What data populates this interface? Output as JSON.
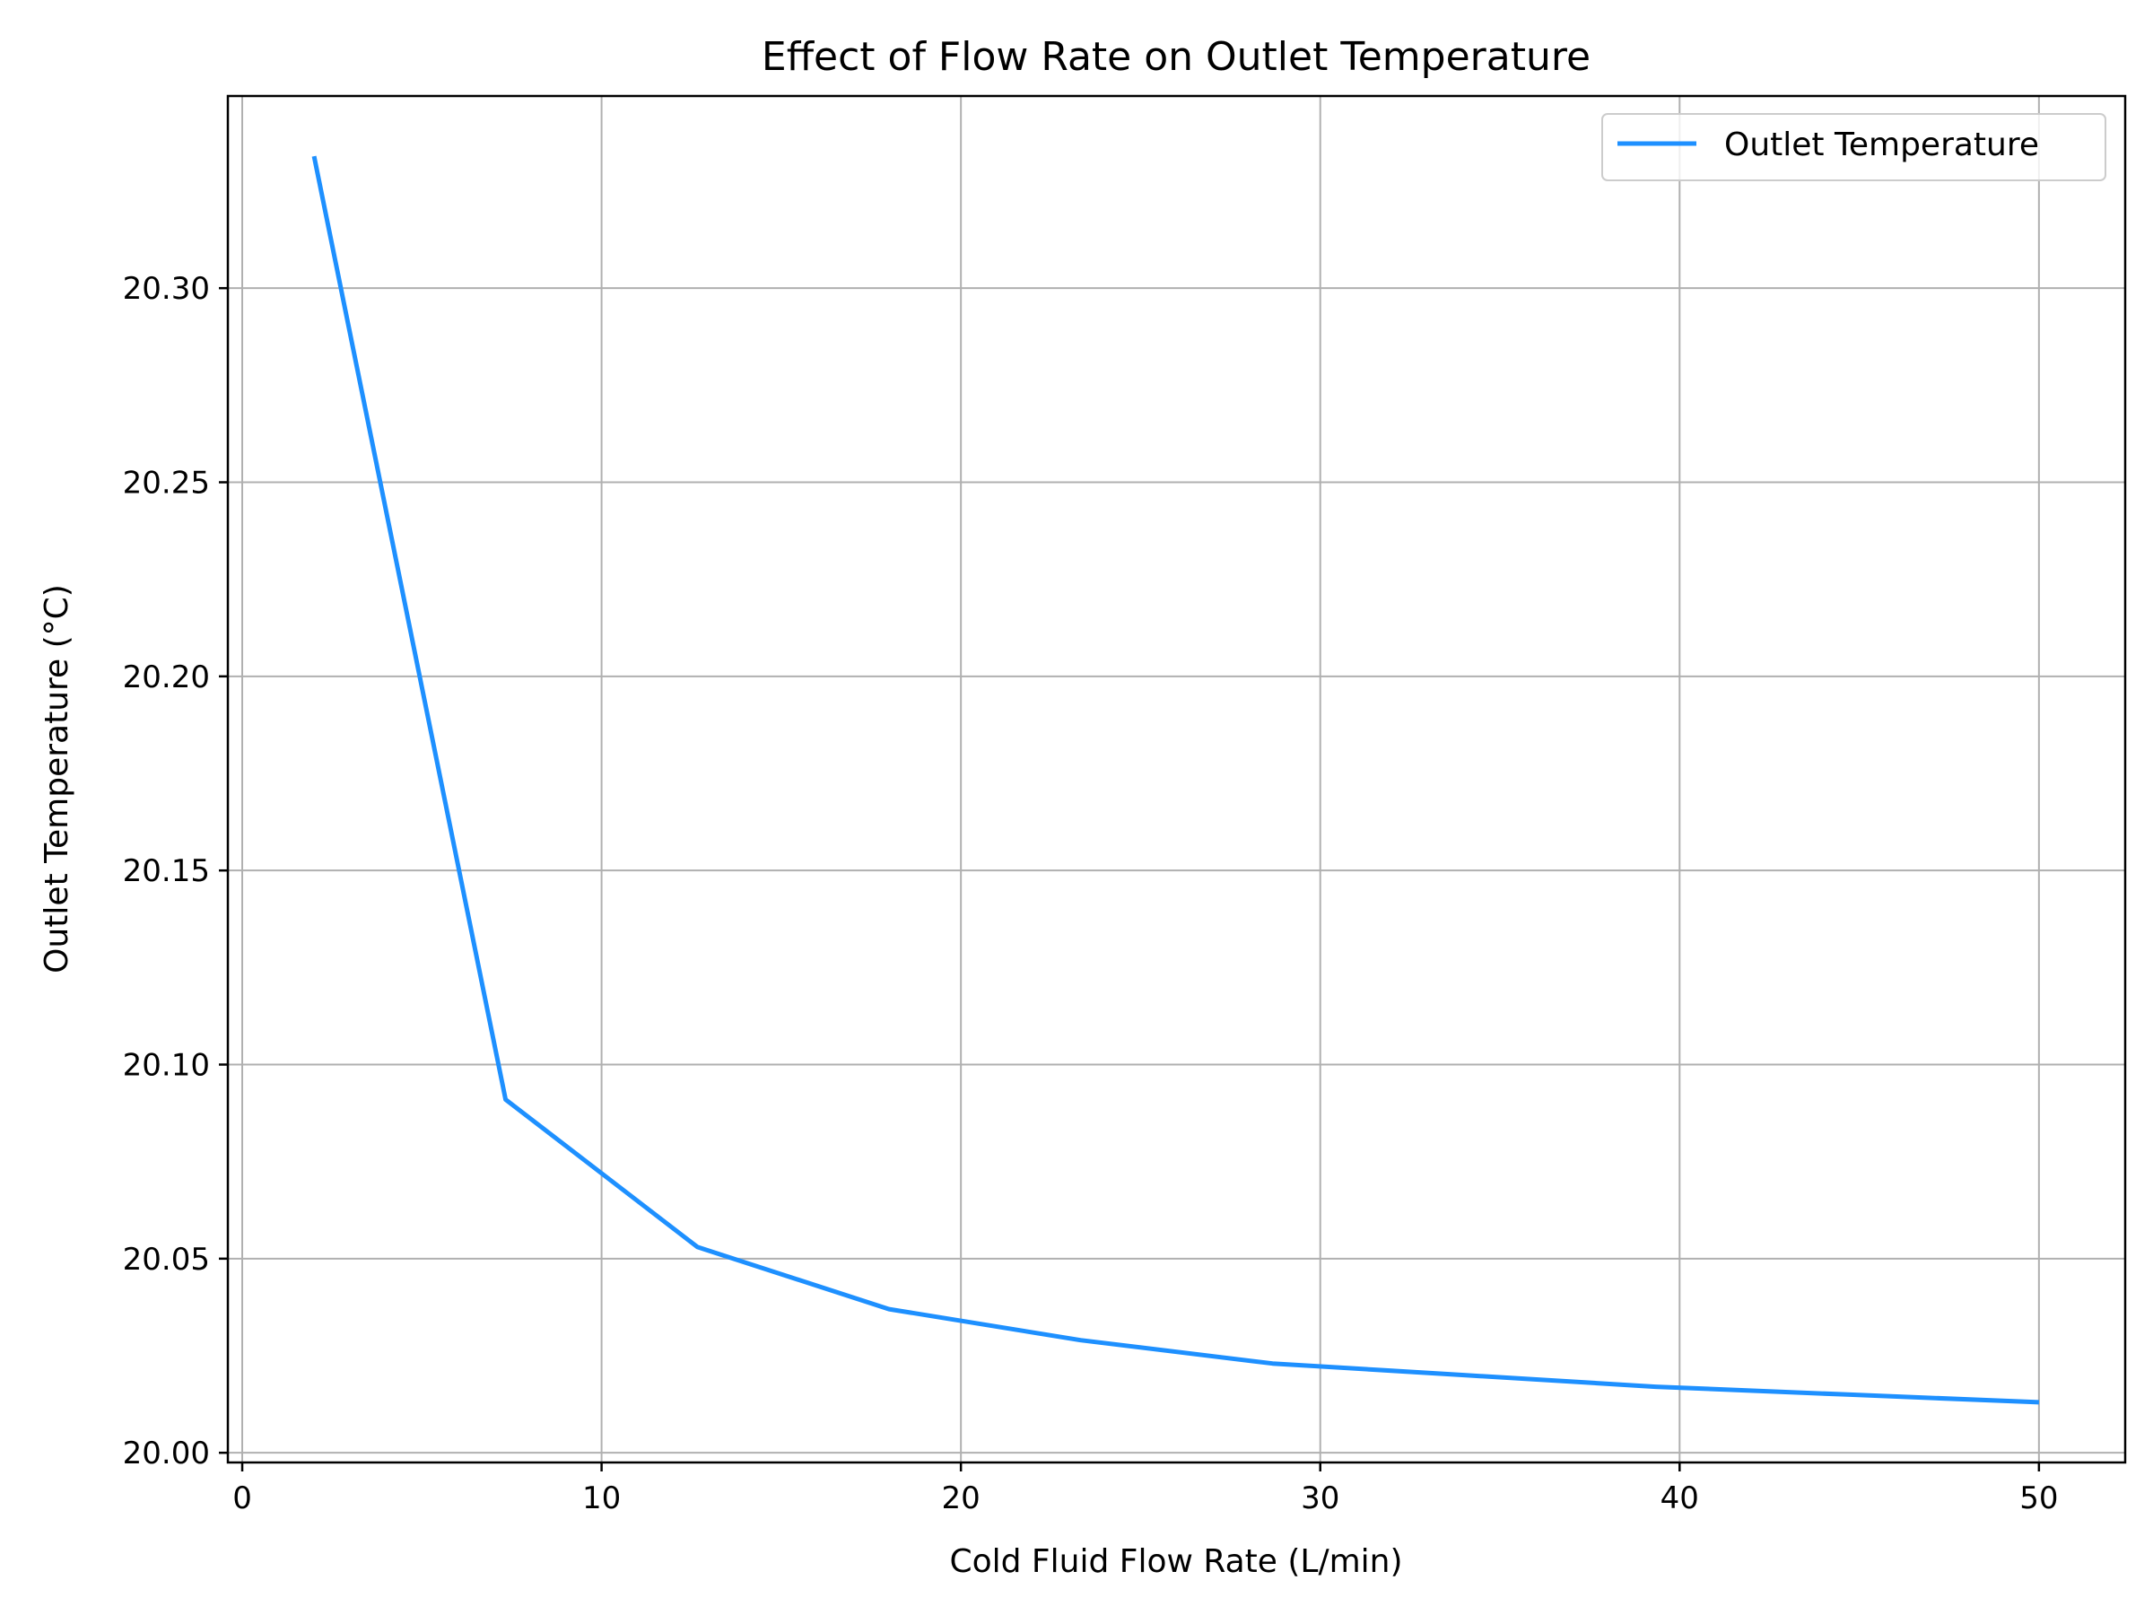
{
  "chart_data": {
    "type": "line",
    "title": "Effect of Flow Rate on Outlet Temperature",
    "xlabel": "Cold Fluid Flow Rate (L/min)",
    "ylabel": "Outlet Temperature (°C)",
    "xlim": [
      -0.4,
      52.4
    ],
    "ylim": [
      19.9975,
      20.3495
    ],
    "xticks": [
      0,
      10,
      20,
      30,
      40,
      50
    ],
    "xtick_labels": [
      "0",
      "10",
      "20",
      "30",
      "40",
      "50"
    ],
    "yticks": [
      20.0,
      20.05,
      20.1,
      20.15,
      20.2,
      20.25,
      20.3
    ],
    "ytick_labels": [
      "20.00",
      "20.05",
      "20.10",
      "20.15",
      "20.20",
      "20.25",
      "20.30"
    ],
    "grid": true,
    "legend_position": "upper right",
    "series": [
      {
        "name": "Outlet Temperature",
        "color": "#1e90ff",
        "x": [
          2.0,
          7.33,
          12.67,
          18.0,
          23.33,
          28.67,
          34.0,
          39.33,
          44.67,
          50.0
        ],
        "y": [
          20.334,
          20.091,
          20.053,
          20.037,
          20.029,
          20.023,
          20.02,
          20.017,
          20.015,
          20.013
        ]
      }
    ]
  }
}
